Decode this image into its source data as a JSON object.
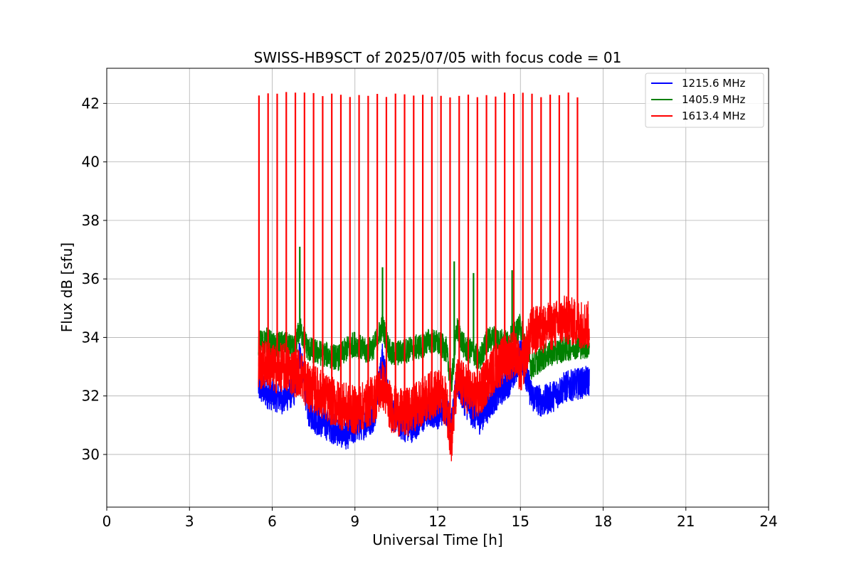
{
  "chart_data": {
    "type": "line",
    "title": "SWISS-HB9SCT of 2025/07/05 with focus code = 01",
    "xlabel": "Universal Time [h]",
    "ylabel": "Flux dB [sfu]",
    "xlim": [
      0,
      24
    ],
    "ylim": [
      28.2,
      43.2
    ],
    "x_ticks": [
      0,
      3,
      6,
      9,
      12,
      15,
      18,
      21,
      24
    ],
    "y_ticks": [
      30,
      32,
      34,
      36,
      38,
      40,
      42
    ],
    "x_tick_labels": [
      "0",
      "3",
      "6",
      "9",
      "12",
      "15",
      "18",
      "21",
      "24"
    ],
    "y_tick_labels": [
      "30",
      "32",
      "34",
      "36",
      "38",
      "40",
      "42"
    ],
    "grid": true,
    "legend_position": "top-right",
    "series": [
      {
        "name": "1215.6 MHz",
        "color": "#0000ff",
        "x": [
          5.5,
          5.8,
          6.1,
          6.4,
          6.8,
          7.0,
          7.3,
          7.6,
          8.0,
          8.4,
          8.7,
          9.0,
          9.4,
          9.7,
          10.0,
          10.3,
          10.7,
          11.0,
          11.4,
          11.7,
          12.0,
          12.3,
          12.5,
          12.7,
          13.0,
          13.3,
          13.5,
          13.8,
          14.1,
          14.5,
          14.8,
          15.0,
          15.4,
          15.8,
          16.2,
          16.6,
          17.0,
          17.5
        ],
        "y": [
          32.3,
          32.1,
          32.0,
          31.9,
          32.2,
          33.5,
          31.5,
          31.2,
          31.0,
          30.8,
          30.7,
          30.9,
          31.1,
          31.3,
          33.3,
          31.4,
          31.0,
          30.9,
          31.2,
          31.5,
          31.4,
          31.6,
          31.0,
          32.5,
          31.8,
          31.4,
          31.2,
          31.6,
          32.0,
          32.4,
          32.8,
          33.5,
          32.0,
          31.8,
          32.0,
          32.3,
          32.4,
          32.5
        ]
      },
      {
        "name": "1405.9 MHz",
        "color": "#008000",
        "x": [
          5.5,
          5.8,
          6.1,
          6.4,
          6.8,
          7.0,
          7.3,
          7.6,
          8.0,
          8.4,
          8.7,
          9.0,
          9.4,
          9.7,
          10.0,
          10.3,
          10.7,
          11.0,
          11.4,
          11.7,
          12.0,
          12.3,
          12.5,
          12.7,
          13.0,
          13.3,
          13.5,
          13.8,
          14.1,
          14.5,
          14.8,
          15.0,
          15.4,
          15.8,
          16.2,
          16.6,
          17.0,
          17.5
        ],
        "y": [
          33.8,
          33.9,
          33.7,
          33.8,
          33.6,
          34.3,
          33.6,
          33.5,
          33.4,
          33.3,
          33.6,
          33.8,
          33.5,
          33.7,
          34.4,
          33.4,
          33.5,
          33.6,
          33.7,
          33.9,
          33.8,
          33.6,
          32.4,
          34.3,
          33.6,
          33.5,
          33.2,
          33.9,
          34.0,
          33.8,
          34.1,
          34.4,
          33.0,
          33.3,
          33.5,
          33.6,
          33.7,
          33.7
        ],
        "spikes": [
          {
            "x": 7.0,
            "y": 37.1
          },
          {
            "x": 10.0,
            "y": 36.4
          },
          {
            "x": 12.6,
            "y": 36.6
          },
          {
            "x": 13.3,
            "y": 36.2
          },
          {
            "x": 14.7,
            "y": 36.3
          }
        ]
      },
      {
        "name": "1613.4 MHz",
        "color": "#ff0000",
        "x": [
          5.5,
          5.8,
          6.1,
          6.4,
          6.8,
          7.0,
          7.3,
          7.6,
          8.0,
          8.4,
          8.7,
          9.0,
          9.4,
          9.7,
          10.0,
          10.3,
          10.7,
          11.0,
          11.4,
          11.7,
          12.0,
          12.3,
          12.5,
          12.7,
          13.0,
          13.3,
          13.5,
          13.8,
          14.1,
          14.5,
          14.8,
          15.0,
          15.4,
          15.8,
          16.2,
          16.6,
          17.0,
          17.5
        ],
        "y": [
          33.0,
          33.1,
          32.9,
          33.0,
          32.8,
          32.8,
          32.3,
          32.2,
          31.9,
          31.7,
          31.6,
          31.5,
          31.7,
          31.9,
          32.4,
          31.6,
          31.4,
          31.5,
          31.8,
          32.0,
          32.1,
          31.8,
          30.5,
          32.5,
          32.3,
          32.0,
          32.0,
          32.6,
          33.0,
          33.3,
          33.5,
          32.8,
          34.2,
          34.3,
          34.4,
          34.6,
          34.5,
          34.4
        ],
        "spike_interval_h": 0.33,
        "spike_start_h": 5.52,
        "spike_end_h": 17.3,
        "spike_peak": 42.3
      }
    ]
  }
}
